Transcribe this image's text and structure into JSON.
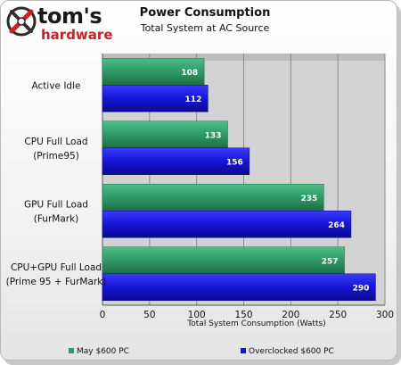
{
  "brand": {
    "word1": "tom's",
    "word2": "hardware"
  },
  "colors": {
    "series1": "#2e9a66",
    "series1_dark": "#1d6e45",
    "series2": "#1515d6",
    "series2_dark": "#0b0b8f",
    "plot_bg": "#c8c8c8",
    "logo_red": "#d21d23"
  },
  "chart_data": {
    "type": "bar",
    "orientation": "horizontal",
    "title": "Power Consumption",
    "subtitle": "Total System at AC Source",
    "xlabel": "Total System Consumption (Watts)",
    "ylabel": "",
    "xlim": [
      0,
      300
    ],
    "xticks": [
      0,
      50,
      100,
      150,
      200,
      250,
      300
    ],
    "grid": true,
    "legend_position": "bottom",
    "categories": [
      [
        "Active Idle"
      ],
      [
        "CPU Full Load",
        "(Prime95)"
      ],
      [
        "GPU Full Load",
        "(FurMark)"
      ],
      [
        "CPU+GPU Full Load",
        "(Prime 95 + FurMark)"
      ]
    ],
    "series": [
      {
        "name": "May $600 PC",
        "values": [
          108,
          133,
          235,
          257
        ]
      },
      {
        "name": "Overclocked $600 PC",
        "values": [
          112,
          156,
          264,
          290
        ]
      }
    ]
  }
}
